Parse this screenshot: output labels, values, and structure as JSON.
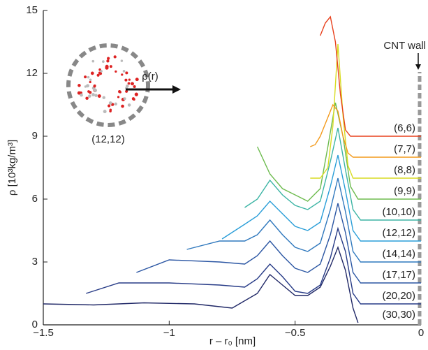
{
  "chart_data": {
    "type": "line",
    "ylabel": "ρ [10³kg/m³]",
    "xlabel": "r – r₀ [nm]",
    "annotations": [
      "CNT wall",
      "ρ(r)",
      "(12,12)"
    ],
    "xlim": [
      -1.5,
      0
    ],
    "ylim": [
      0,
      15
    ],
    "xticks": [
      {
        "value": -1.5,
        "label": "−1.5"
      },
      {
        "value": -1,
        "label": "−1"
      },
      {
        "value": -0.5,
        "label": "−0.5"
      },
      0
    ],
    "yticks": [
      0,
      3,
      6,
      9,
      12,
      15
    ],
    "series": [
      {
        "name": "(30,30)",
        "color": "#1f2766",
        "x": [
          -1.5,
          -1.3,
          -1.1,
          -0.9,
          -0.75,
          -0.65,
          -0.6,
          -0.55,
          -0.5,
          -0.45,
          -0.4,
          -0.36,
          -0.33,
          -0.3,
          -0.27,
          -0.25
        ],
        "values": [
          1.0,
          0.95,
          1.05,
          1.0,
          0.8,
          1.5,
          2.4,
          1.9,
          1.4,
          1.4,
          1.8,
          2.8,
          3.7,
          2.6,
          0.8,
          0.1
        ]
      },
      {
        "name": "(20,20)",
        "color": "#263a86",
        "x": [
          -1.33,
          -1.2,
          -1.0,
          -0.8,
          -0.7,
          -0.65,
          -0.6,
          -0.55,
          -0.5,
          -0.45,
          -0.4,
          -0.36,
          -0.33,
          -0.3,
          -0.27,
          -0.24,
          0
        ],
        "values": [
          1.5,
          2.0,
          2.0,
          1.9,
          1.8,
          2.2,
          2.9,
          2.3,
          1.6,
          1.5,
          1.9,
          3.2,
          4.6,
          3.5,
          1.5,
          1.0,
          1.0
        ]
      },
      {
        "name": "(17,17)",
        "color": "#2b56a3",
        "x": [
          -1.13,
          -1.0,
          -0.8,
          -0.7,
          -0.65,
          -0.6,
          -0.55,
          -0.5,
          -0.45,
          -0.4,
          -0.36,
          -0.33,
          -0.3,
          -0.27,
          -0.24,
          0
        ],
        "values": [
          2.5,
          3.1,
          3.0,
          2.9,
          3.3,
          4.0,
          3.3,
          2.7,
          2.5,
          2.9,
          4.3,
          5.8,
          4.4,
          2.5,
          2.0,
          2.0
        ]
      },
      {
        "name": "(14,14)",
        "color": "#2f78bd",
        "x": [
          -0.93,
          -0.8,
          -0.7,
          -0.65,
          -0.6,
          -0.55,
          -0.5,
          -0.45,
          -0.4,
          -0.36,
          -0.33,
          -0.3,
          -0.27,
          -0.24,
          0
        ],
        "values": [
          3.6,
          4.0,
          4.0,
          4.3,
          5.0,
          4.3,
          3.7,
          3.5,
          3.9,
          5.5,
          7.0,
          5.4,
          3.5,
          3.0,
          3.0
        ]
      },
      {
        "name": "(12,12)",
        "color": "#2a9ed8",
        "x": [
          -0.79,
          -0.7,
          -0.65,
          -0.6,
          -0.55,
          -0.5,
          -0.45,
          -0.4,
          -0.36,
          -0.33,
          -0.3,
          -0.27,
          -0.24,
          0
        ],
        "values": [
          4.1,
          4.8,
          5.2,
          5.9,
          5.3,
          4.7,
          4.5,
          4.9,
          6.6,
          8.1,
          6.4,
          4.5,
          4.0,
          4.0
        ]
      },
      {
        "name": "(10,10)",
        "color": "#3bb4a4",
        "x": [
          -0.7,
          -0.65,
          -0.6,
          -0.55,
          -0.5,
          -0.45,
          -0.4,
          -0.36,
          -0.33,
          -0.3,
          -0.27,
          -0.24,
          0
        ],
        "values": [
          5.6,
          6.0,
          6.9,
          6.2,
          5.7,
          5.5,
          5.9,
          7.8,
          9.4,
          7.4,
          5.5,
          5.0,
          5.0
        ]
      },
      {
        "name": "(9,9)",
        "color": "#6dbb4e",
        "x": [
          -0.65,
          -0.6,
          -0.55,
          -0.5,
          -0.45,
          -0.4,
          -0.37,
          -0.34,
          -0.31,
          -0.28,
          -0.25,
          0
        ],
        "values": [
          8.5,
          7.2,
          6.5,
          6.2,
          5.9,
          6.5,
          8.5,
          10.6,
          9.0,
          6.6,
          6.0,
          6.0
        ]
      },
      {
        "name": "(8,8)",
        "color": "#d8dc22",
        "x": [
          -0.44,
          -0.4,
          -0.37,
          -0.35,
          -0.33,
          -0.31,
          -0.29,
          -0.27,
          0
        ],
        "values": [
          7.0,
          7.0,
          7.5,
          9.5,
          13.4,
          10.0,
          7.6,
          7.0,
          7.0
        ]
      },
      {
        "name": "(7,7)",
        "color": "#f39a1c",
        "x": [
          -0.44,
          -0.42,
          -0.4,
          -0.37,
          -0.35,
          -0.33,
          -0.31,
          -0.29,
          -0.27,
          0
        ],
        "values": [
          8.5,
          8.6,
          9.0,
          9.9,
          10.5,
          10.2,
          9.0,
          8.2,
          8.0,
          8.0
        ]
      },
      {
        "name": "(6,6)",
        "color": "#e8401c",
        "x": [
          -0.4,
          -0.38,
          -0.36,
          -0.34,
          -0.32,
          -0.3,
          -0.28,
          0
        ],
        "values": [
          13.8,
          14.4,
          14.7,
          13.5,
          11.0,
          9.3,
          9.0,
          9.0
        ]
      }
    ]
  }
}
